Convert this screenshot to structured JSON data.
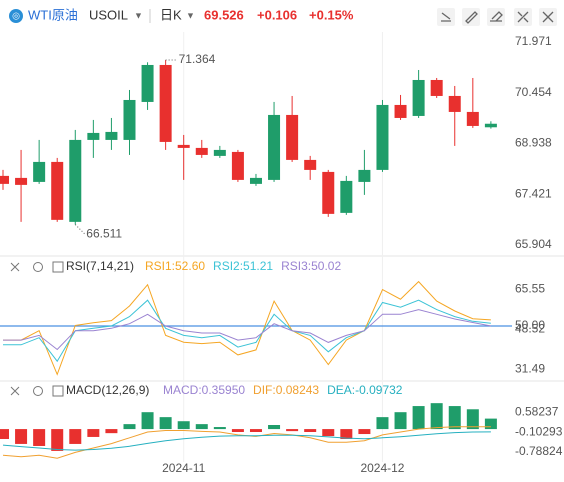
{
  "header": {
    "name": "WTI原油",
    "symbol": "USOIL",
    "period": "日K",
    "price": "69.526",
    "change": "+0.106",
    "change_pct": "+0.15%"
  },
  "chart_data": [
    {
      "type": "candlestick",
      "up_color": "#1f9d6a",
      "down_color": "#e8302e",
      "categories": [
        null,
        null,
        null,
        null,
        null,
        null,
        null,
        null,
        null,
        null,
        "2024-11",
        null,
        null,
        null,
        null,
        null,
        null,
        null,
        null,
        null,
        null,
        "2024-12",
        null,
        null,
        null,
        null,
        null,
        null
      ],
      "open": [
        67.966,
        67.906,
        67.786,
        68.384,
        66.591,
        69.042,
        69.042,
        69.042,
        70.178,
        71.284,
        68.893,
        68.803,
        68.564,
        68.683,
        67.727,
        67.846,
        69.789,
        68.444,
        68.085,
        66.86,
        67.786,
        68.145,
        70.088,
        69.759,
        70.835,
        70.357,
        69.879,
        69.42
      ],
      "high": [
        68.145,
        68.743,
        69.042,
        68.504,
        69.341,
        69.64,
        69.699,
        70.536,
        71.364,
        71.433,
        69.191,
        69.042,
        68.863,
        68.743,
        68.025,
        70.178,
        70.357,
        68.564,
        68.145,
        67.966,
        68.743,
        70.237,
        70.387,
        71.134,
        70.895,
        70.656,
        70.895,
        69.6
      ],
      "low": [
        67.547,
        66.591,
        67.727,
        66.591,
        66.511,
        68.504,
        68.743,
        68.593,
        69.939,
        68.743,
        67.846,
        68.504,
        68.504,
        67.786,
        67.667,
        67.786,
        68.384,
        67.846,
        66.74,
        66.8,
        67.398,
        68.085,
        69.64,
        69.699,
        70.297,
        68.863,
        69.401,
        69.38
      ],
      "close": [
        67.727,
        67.697,
        68.384,
        66.651,
        69.042,
        69.251,
        69.281,
        70.237,
        71.284,
        68.982,
        68.803,
        68.593,
        68.743,
        67.846,
        67.906,
        69.789,
        68.444,
        68.145,
        66.83,
        67.816,
        68.145,
        70.088,
        69.699,
        70.835,
        70.357,
        69.879,
        69.46,
        69.526
      ],
      "high_label": "71.364",
      "low_label": "66.511",
      "ylim": [
        65.6,
        72.27
      ],
      "yticks": [
        65.904,
        67.421,
        68.938,
        70.454,
        71.971
      ]
    },
    {
      "type": "line",
      "title": "RSI(7,14,21)",
      "series": [
        {
          "name": "RSI1:52.60",
          "color": "#f5a623",
          "values": [
            44,
            44,
            48,
            29.4,
            50.2,
            51.4,
            52.3,
            58.5,
            67.6,
            46,
            43.1,
            42.5,
            43.1,
            37.7,
            39.8,
            60.6,
            48.1,
            44,
            33.6,
            44,
            48.1,
            65.5,
            61.4,
            68.9,
            60.6,
            56.4,
            53.1,
            52.6
          ]
        },
        {
          "name": "RSI2:51.21",
          "color": "#3cc3d6",
          "values": [
            42,
            42,
            45,
            35,
            48,
            49,
            50,
            54,
            61,
            49,
            46,
            45,
            46,
            41,
            43,
            55,
            48,
            46,
            39,
            45,
            48,
            60,
            58,
            61,
            57,
            54,
            52,
            51.21
          ]
        },
        {
          "name": "RSI3:50.02",
          "color": "#9a83d1",
          "values": [
            44,
            44,
            46,
            40,
            48,
            48,
            49,
            51,
            55,
            50,
            48,
            47,
            47,
            44,
            45,
            51,
            48,
            47,
            43,
            46,
            48,
            55,
            55,
            57,
            55,
            53,
            51.5,
            50.02
          ]
        }
      ],
      "reference_line": {
        "value": 50,
        "color": "#4a90e2"
      },
      "ylim": [
        27,
        73
      ],
      "yticks": [
        31.49,
        48.52,
        {
          "value": 50,
          "label": "50.00"
        },
        65.55
      ]
    },
    {
      "type": "macd",
      "title": "MACD(12,26,9)",
      "histogram": {
        "name": "MACD:0.35950",
        "color": "#9a83d1",
        "up_color": "#1f9d6a",
        "down_color": "#e8302e",
        "values": [
          -0.34,
          -0.51,
          -0.58,
          -0.75,
          -0.51,
          -0.27,
          -0.14,
          0.17,
          0.58,
          0.41,
          0.27,
          0.17,
          0.07,
          -0.1,
          -0.1,
          0.14,
          -0.07,
          -0.1,
          -0.24,
          -0.34,
          -0.17,
          0.41,
          0.58,
          0.79,
          0.89,
          0.79,
          0.68,
          0.3595
        ]
      },
      "series": [
        {
          "name": "DIF:0.08243",
          "color": "#f0a030",
          "values": [
            -0.9,
            -0.95,
            -0.9,
            -1.0,
            -0.8,
            -0.65,
            -0.5,
            -0.3,
            -0.1,
            -0.05,
            -0.05,
            -0.08,
            -0.1,
            -0.2,
            -0.25,
            -0.15,
            -0.2,
            -0.3,
            -0.45,
            -0.45,
            -0.4,
            -0.2,
            -0.1,
            0.0,
            0.05,
            0.08,
            0.08,
            0.08243
          ]
        },
        {
          "name": "DEA:-0.09732",
          "color": "#26b0c0",
          "values": [
            -0.55,
            -0.6,
            -0.65,
            -0.7,
            -0.72,
            -0.7,
            -0.66,
            -0.59,
            -0.49,
            -0.4,
            -0.33,
            -0.28,
            -0.24,
            -0.23,
            -0.23,
            -0.21,
            -0.21,
            -0.23,
            -0.27,
            -0.31,
            -0.33,
            -0.3,
            -0.26,
            -0.21,
            -0.16,
            -0.12,
            -0.1,
            -0.09732
          ]
        }
      ],
      "ylim": [
        -1.13,
        1.17
      ],
      "yticks": [
        -0.78824,
        -0.10293,
        0.58237
      ]
    }
  ]
}
